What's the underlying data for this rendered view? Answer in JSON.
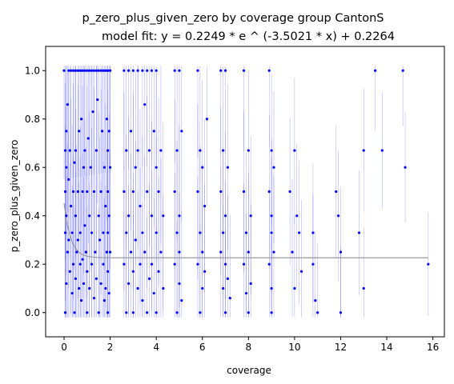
{
  "chart_data": {
    "type": "scatter",
    "title": "p_zero_plus_given_zero by coverage group CantonS",
    "subtitle": "model fit: y = 0.2249 * e ^ (-3.5021 * x) + 0.2264",
    "xlabel": "coverage",
    "ylabel": "p_zero_plus_given_zero",
    "xlim": [
      -0.8,
      16.5
    ],
    "ylim": [
      -0.1,
      1.1
    ],
    "xticks": [
      0,
      2,
      4,
      6,
      8,
      10,
      12,
      14,
      16
    ],
    "yticks": [
      0.0,
      0.2,
      0.4,
      0.6,
      0.8,
      1.0
    ],
    "grid": false,
    "legend": "none",
    "fit": {
      "a": 0.2249,
      "b": -3.5021,
      "c": 0.2264,
      "x_range": [
        0,
        15.8
      ]
    },
    "colors": {
      "points": "#0000ff",
      "errorbars": "#0000ff",
      "fit": "#999999"
    },
    "points": [
      [
        0.0,
        1.0
      ],
      [
        0.05,
        0.67
      ],
      [
        0.05,
        0.5
      ],
      [
        0.05,
        0.33
      ],
      [
        0.05,
        0.0
      ],
      [
        0.1,
        0.75
      ],
      [
        0.1,
        0.6
      ],
      [
        0.1,
        0.4
      ],
      [
        0.1,
        0.12
      ],
      [
        0.15,
        0.86
      ],
      [
        0.15,
        0.25
      ],
      [
        0.2,
        1.0
      ],
      [
        0.2,
        0.55
      ],
      [
        0.2,
        0.3
      ],
      [
        0.25,
        0.67
      ],
      [
        0.25,
        0.17
      ],
      [
        0.3,
        1.0
      ],
      [
        0.3,
        0.44
      ],
      [
        0.35,
        0.33
      ],
      [
        0.35,
        0.08
      ],
      [
        0.4,
        1.0
      ],
      [
        0.4,
        0.5
      ],
      [
        0.4,
        0.2
      ],
      [
        0.45,
        0.62
      ],
      [
        0.45,
        0.0
      ],
      [
        0.5,
        1.0
      ],
      [
        0.5,
        0.67
      ],
      [
        0.5,
        0.4
      ],
      [
        0.5,
        0.14
      ],
      [
        0.55,
        0.25
      ],
      [
        0.6,
        1.0
      ],
      [
        0.6,
        0.5
      ],
      [
        0.6,
        0.3
      ],
      [
        0.65,
        0.75
      ],
      [
        0.65,
        0.1
      ],
      [
        0.7,
        1.0
      ],
      [
        0.7,
        0.33
      ],
      [
        0.7,
        0.2
      ],
      [
        0.75,
        0.8
      ],
      [
        0.75,
        0.05
      ],
      [
        0.8,
        1.0
      ],
      [
        0.8,
        0.5
      ],
      [
        0.8,
        0.22
      ],
      [
        0.85,
        0.6
      ],
      [
        0.85,
        0.12
      ],
      [
        0.9,
        1.0
      ],
      [
        0.9,
        0.67
      ],
      [
        0.9,
        0.36
      ],
      [
        0.95,
        0.25
      ],
      [
        1.0,
        1.0
      ],
      [
        1.0,
        0.5
      ],
      [
        1.0,
        0.17
      ],
      [
        1.0,
        0.0
      ],
      [
        1.05,
        0.72
      ],
      [
        1.1,
        1.0
      ],
      [
        1.1,
        0.4
      ],
      [
        1.1,
        0.1
      ],
      [
        1.15,
        0.6
      ],
      [
        1.2,
        1.0
      ],
      [
        1.2,
        0.33
      ],
      [
        1.2,
        0.2
      ],
      [
        1.25,
        0.83
      ],
      [
        1.3,
        1.0
      ],
      [
        1.3,
        0.5
      ],
      [
        1.3,
        0.06
      ],
      [
        1.35,
        0.25
      ],
      [
        1.4,
        1.0
      ],
      [
        1.4,
        0.67
      ],
      [
        1.4,
        0.14
      ],
      [
        1.45,
        0.88
      ],
      [
        1.5,
        1.0
      ],
      [
        1.5,
        0.4
      ],
      [
        1.5,
        0.0
      ],
      [
        1.55,
        0.3
      ],
      [
        1.6,
        1.0
      ],
      [
        1.6,
        0.5
      ],
      [
        1.6,
        0.12
      ],
      [
        1.65,
        0.75
      ],
      [
        1.7,
        1.0
      ],
      [
        1.7,
        0.33
      ],
      [
        1.7,
        0.2
      ],
      [
        1.75,
        0.6
      ],
      [
        1.75,
        0.05
      ],
      [
        1.8,
        1.0
      ],
      [
        1.8,
        0.44
      ],
      [
        1.8,
        0.1
      ],
      [
        1.85,
        0.8
      ],
      [
        1.85,
        0.25
      ],
      [
        1.9,
        1.0
      ],
      [
        1.9,
        0.67
      ],
      [
        1.9,
        0.5
      ],
      [
        1.9,
        0.33
      ],
      [
        1.9,
        0.17
      ],
      [
        1.9,
        0.0
      ],
      [
        1.95,
        0.75
      ],
      [
        1.95,
        0.4
      ],
      [
        1.95,
        0.08
      ],
      [
        2.0,
        1.0
      ],
      [
        2.0,
        0.6
      ],
      [
        2.0,
        0.25
      ],
      [
        2.6,
        1.0
      ],
      [
        2.6,
        0.5
      ],
      [
        2.6,
        0.2
      ],
      [
        2.7,
        0.67
      ],
      [
        2.7,
        0.33
      ],
      [
        2.7,
        0.0
      ],
      [
        2.8,
        1.0
      ],
      [
        2.8,
        0.4
      ],
      [
        2.8,
        0.12
      ],
      [
        2.9,
        0.75
      ],
      [
        2.9,
        0.25
      ],
      [
        3.0,
        1.0
      ],
      [
        3.0,
        0.5
      ],
      [
        3.0,
        0.17
      ],
      [
        3.0,
        0.0
      ],
      [
        3.1,
        0.6
      ],
      [
        3.1,
        0.3
      ],
      [
        3.2,
        1.0
      ],
      [
        3.2,
        0.67
      ],
      [
        3.2,
        0.1
      ],
      [
        3.3,
        0.44
      ],
      [
        3.3,
        0.2
      ],
      [
        3.4,
        1.0
      ],
      [
        3.4,
        0.33
      ],
      [
        3.4,
        0.05
      ],
      [
        3.5,
        0.86
      ],
      [
        3.5,
        0.25
      ],
      [
        3.6,
        1.0
      ],
      [
        3.6,
        0.5
      ],
      [
        3.6,
        0.0
      ],
      [
        3.7,
        0.67
      ],
      [
        3.7,
        0.14
      ],
      [
        3.8,
        1.0
      ],
      [
        3.8,
        0.4
      ],
      [
        3.8,
        0.2
      ],
      [
        3.9,
        0.75
      ],
      [
        3.9,
        0.08
      ],
      [
        4.0,
        1.0
      ],
      [
        4.0,
        0.6
      ],
      [
        4.0,
        0.33
      ],
      [
        4.0,
        0.0
      ],
      [
        4.1,
        0.5
      ],
      [
        4.1,
        0.17
      ],
      [
        4.2,
        0.25
      ],
      [
        4.2,
        0.67
      ],
      [
        4.3,
        0.4
      ],
      [
        4.3,
        0.1
      ],
      [
        4.8,
        1.0
      ],
      [
        4.8,
        0.5
      ],
      [
        4.8,
        0.2
      ],
      [
        4.9,
        0.67
      ],
      [
        4.9,
        0.33
      ],
      [
        4.9,
        0.0
      ],
      [
        5.0,
        1.0
      ],
      [
        5.0,
        0.4
      ],
      [
        5.0,
        0.25
      ],
      [
        5.0,
        0.12
      ],
      [
        5.1,
        0.75
      ],
      [
        5.1,
        0.05
      ],
      [
        5.8,
        1.0
      ],
      [
        5.8,
        0.5
      ],
      [
        5.8,
        0.2
      ],
      [
        5.9,
        0.67
      ],
      [
        5.9,
        0.33
      ],
      [
        5.9,
        0.0
      ],
      [
        6.0,
        0.6
      ],
      [
        6.0,
        0.25
      ],
      [
        6.0,
        0.1
      ],
      [
        6.1,
        0.44
      ],
      [
        6.1,
        0.17
      ],
      [
        6.2,
        0.8
      ],
      [
        6.8,
        1.0
      ],
      [
        6.8,
        0.5
      ],
      [
        6.8,
        0.25
      ],
      [
        6.9,
        0.67
      ],
      [
        6.9,
        0.33
      ],
      [
        6.9,
        0.1
      ],
      [
        7.0,
        1.0
      ],
      [
        7.0,
        0.4
      ],
      [
        7.0,
        0.2
      ],
      [
        7.0,
        0.0
      ],
      [
        7.1,
        0.6
      ],
      [
        7.1,
        0.14
      ],
      [
        7.2,
        0.06
      ],
      [
        7.8,
        1.0
      ],
      [
        7.8,
        0.5
      ],
      [
        7.8,
        0.2
      ],
      [
        7.9,
        0.33
      ],
      [
        7.9,
        0.08
      ],
      [
        8.0,
        0.67
      ],
      [
        8.0,
        0.25
      ],
      [
        8.0,
        0.0
      ],
      [
        8.1,
        0.4
      ],
      [
        8.1,
        0.12
      ],
      [
        8.9,
        1.0
      ],
      [
        8.9,
        0.5
      ],
      [
        8.9,
        0.2
      ],
      [
        9.0,
        0.67
      ],
      [
        9.0,
        0.4
      ],
      [
        9.0,
        0.33
      ],
      [
        9.0,
        0.1
      ],
      [
        9.0,
        0.0
      ],
      [
        9.1,
        0.25
      ],
      [
        9.1,
        0.6
      ],
      [
        9.8,
        0.5
      ],
      [
        9.9,
        0.25
      ],
      [
        10.0,
        0.67
      ],
      [
        10.0,
        0.1
      ],
      [
        10.1,
        0.4
      ],
      [
        10.2,
        0.33
      ],
      [
        10.3,
        0.17
      ],
      [
        10.8,
        0.33
      ],
      [
        10.8,
        0.2
      ],
      [
        10.9,
        0.05
      ],
      [
        11.0,
        0.0
      ],
      [
        11.8,
        0.5
      ],
      [
        11.9,
        0.4
      ],
      [
        12.0,
        0.25
      ],
      [
        12.0,
        0.0
      ],
      [
        12.8,
        0.33
      ],
      [
        13.0,
        0.67
      ],
      [
        13.0,
        0.1
      ],
      [
        13.5,
        1.0
      ],
      [
        13.8,
        0.67
      ],
      [
        14.7,
        1.0
      ],
      [
        14.8,
        0.6
      ],
      [
        15.8,
        0.2
      ]
    ]
  }
}
